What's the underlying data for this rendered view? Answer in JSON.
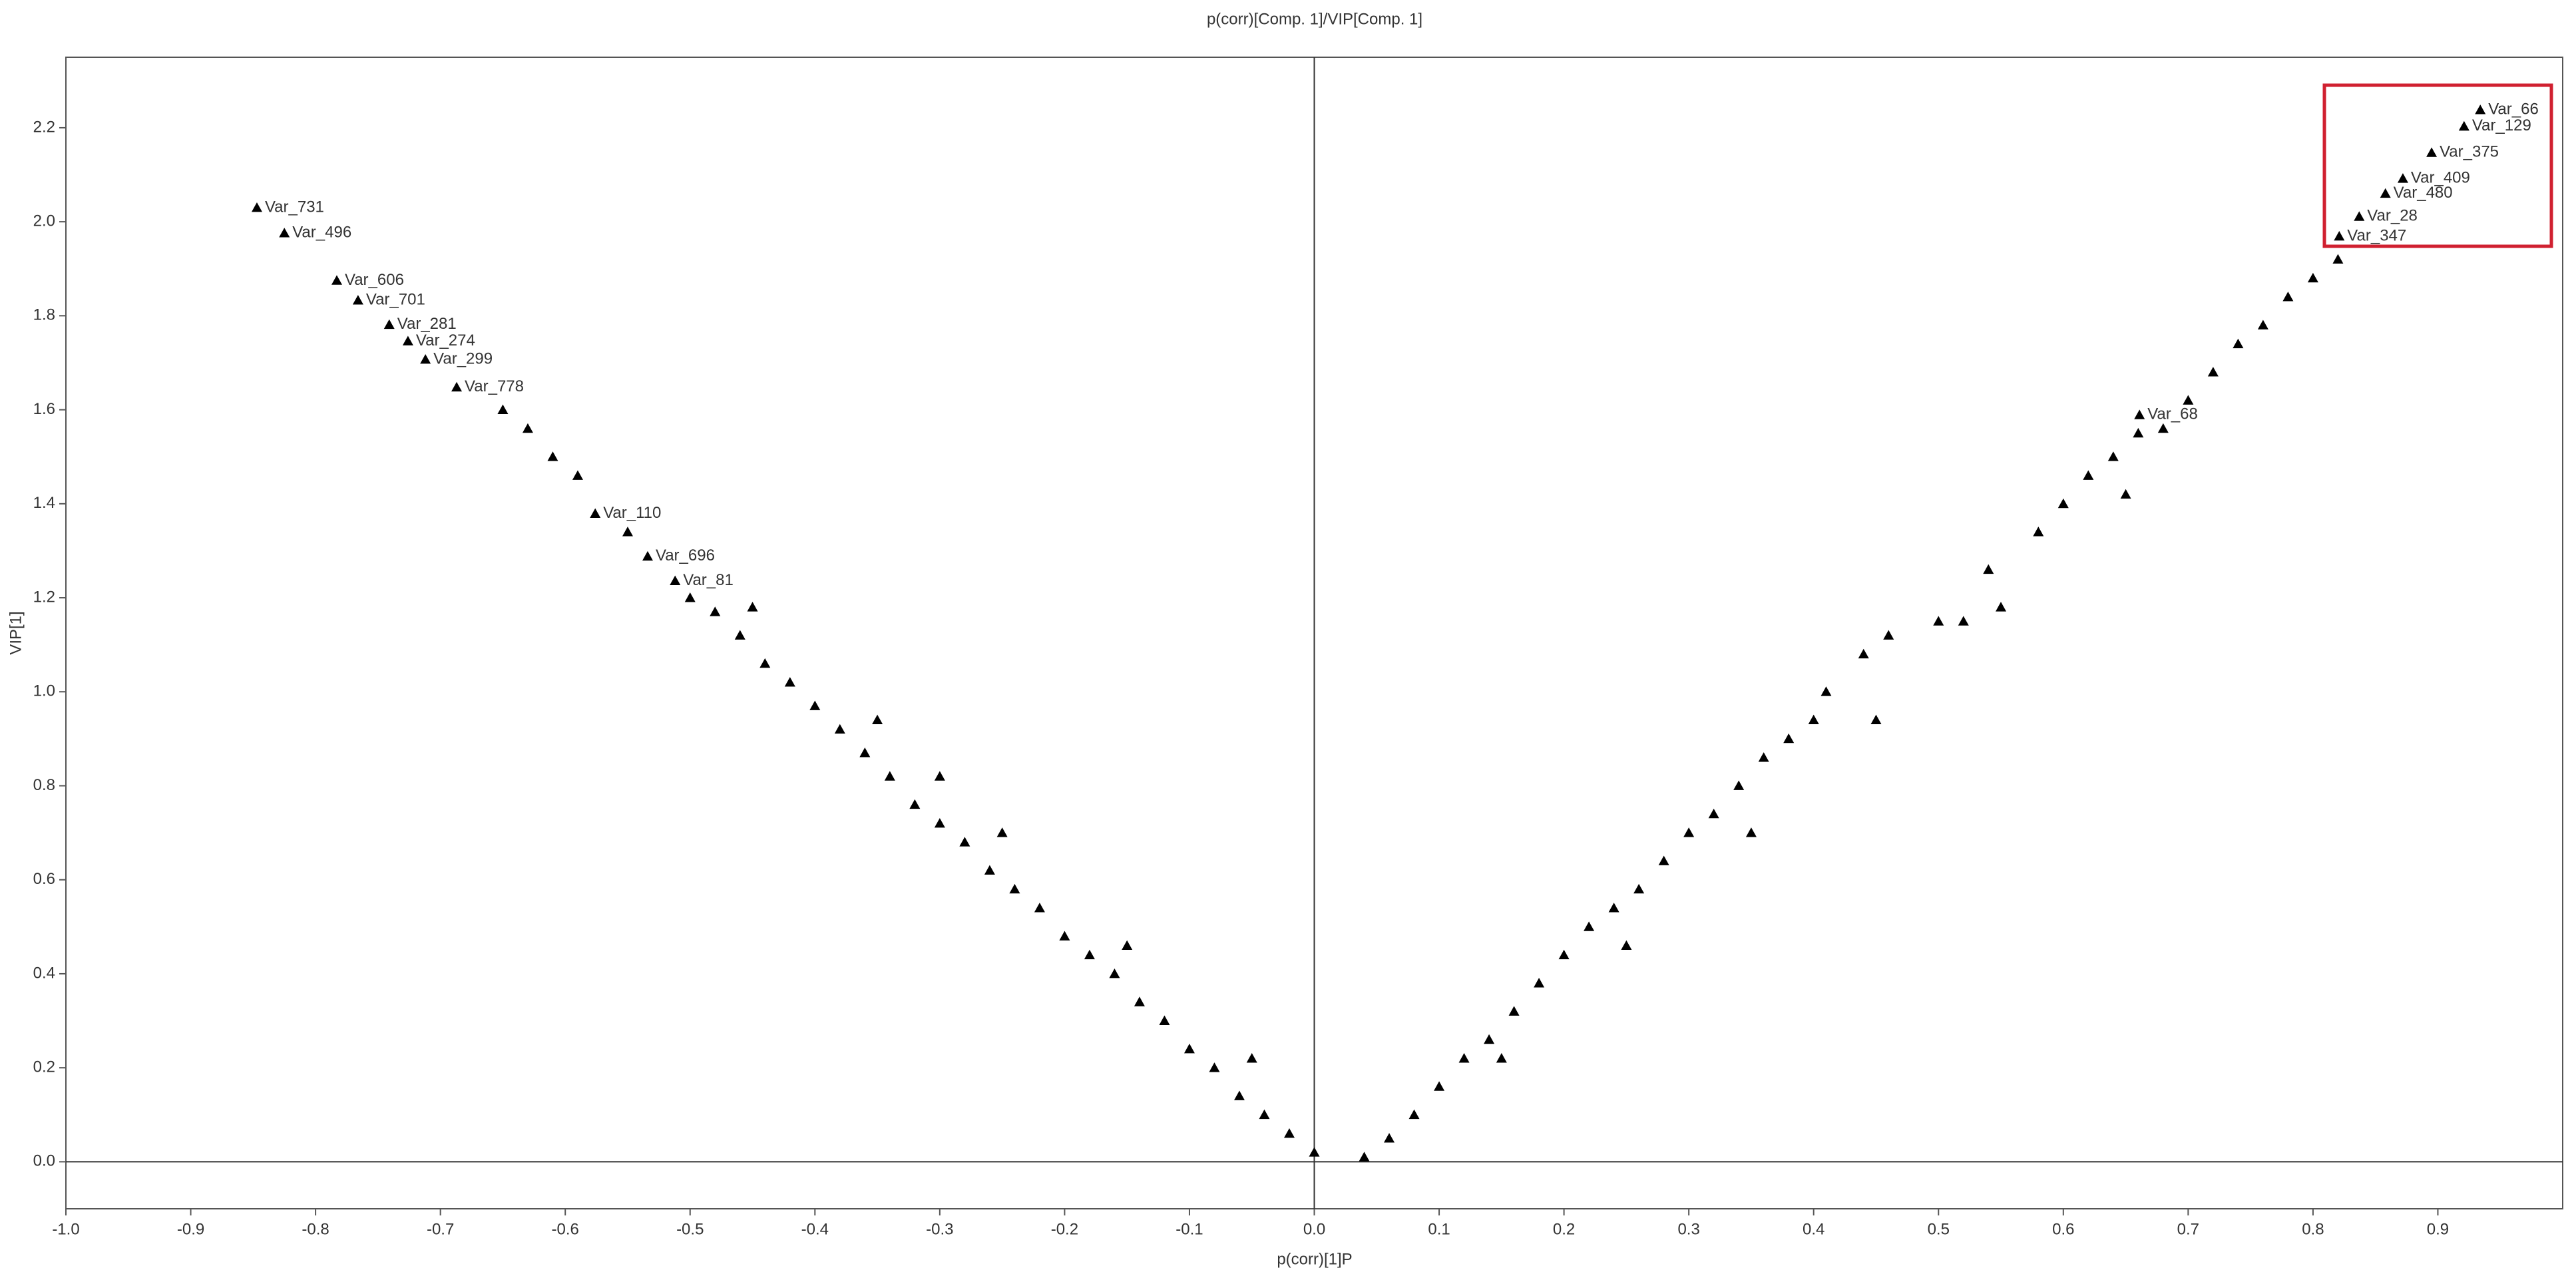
{
  "chart_data": {
    "type": "scatter",
    "title": "p(corr)[Comp. 1]/VIP[Comp. 1]",
    "x_label": "p(corr)[1]P",
    "y_label": "VIP[1]",
    "color": "#000000",
    "xlim": [
      -1,
      1
    ],
    "ylim": [
      -0.1,
      2.35
    ],
    "xticks": [
      {
        "value": -1,
        "label": "-1.0"
      },
      -0.9,
      -0.8,
      -0.7,
      -0.6,
      -0.5,
      -0.4,
      -0.3,
      -0.2,
      -0.1,
      {
        "value": 0,
        "label": "0.0"
      },
      0.1,
      0.2,
      0.3,
      0.4,
      0.5,
      0.6,
      0.7,
      0.8,
      0.9
    ],
    "yticks": [
      {
        "value": 0,
        "label": "0.0"
      },
      0.2,
      0.4,
      0.6,
      0.8,
      {
        "value": 1,
        "label": "1.0"
      },
      1.2,
      1.4,
      1.6,
      1.8,
      {
        "value": 2,
        "label": "2.0"
      },
      2.2
    ],
    "x": [
      -0.847,
      -0.825,
      -0.783,
      -0.766,
      -0.741,
      -0.726,
      -0.712,
      -0.687,
      -0.576,
      -0.534,
      -0.512,
      0.934,
      0.921,
      0.895,
      0.872,
      0.858,
      0.837,
      0.821,
      0.661,
      -0.65,
      -0.63,
      -0.61,
      -0.59,
      -0.55,
      -0.5,
      -0.48,
      -0.46,
      -0.44,
      -0.42,
      -0.4,
      -0.38,
      -0.36,
      -0.34,
      -0.3,
      -0.32,
      -0.3,
      -0.28,
      -0.26,
      -0.24,
      -0.22,
      -0.2,
      -0.18,
      -0.16,
      -0.14,
      -0.12,
      -0.1,
      -0.08,
      -0.06,
      -0.04,
      -0.02,
      0.0,
      -0.45,
      -0.35,
      -0.25,
      -0.15,
      -0.05,
      0.04,
      0.06,
      0.08,
      0.1,
      0.12,
      0.14,
      0.16,
      0.18,
      0.2,
      0.22,
      0.24,
      0.26,
      0.28,
      0.3,
      0.32,
      0.34,
      0.36,
      0.38,
      0.4,
      0.41,
      0.44,
      0.46,
      0.5,
      0.52,
      0.54,
      0.58,
      0.6,
      0.62,
      0.64,
      0.66,
      0.68,
      0.7,
      0.72,
      0.74,
      0.76,
      0.78,
      0.8,
      0.82,
      0.15,
      0.25,
      0.35,
      0.45,
      0.55,
      0.65
    ],
    "values": [
      2.03,
      1.976,
      1.875,
      1.833,
      1.781,
      1.746,
      1.707,
      1.648,
      1.379,
      1.288,
      1.236,
      2.238,
      2.203,
      2.147,
      2.092,
      2.06,
      2.011,
      1.969,
      1.589,
      1.6,
      1.56,
      1.5,
      1.46,
      1.34,
      1.2,
      1.17,
      1.12,
      1.06,
      1.02,
      0.97,
      0.92,
      0.87,
      0.82,
      0.82,
      0.76,
      0.72,
      0.68,
      0.62,
      0.58,
      0.54,
      0.48,
      0.44,
      0.4,
      0.34,
      0.3,
      0.24,
      0.2,
      0.14,
      0.1,
      0.06,
      0.02,
      1.18,
      0.94,
      0.7,
      0.46,
      0.22,
      0.01,
      0.05,
      0.1,
      0.16,
      0.22,
      0.26,
      0.32,
      0.38,
      0.44,
      0.5,
      0.54,
      0.58,
      0.64,
      0.7,
      0.74,
      0.8,
      0.86,
      0.9,
      0.94,
      1.0,
      1.08,
      1.12,
      1.15,
      1.15,
      1.26,
      1.34,
      1.4,
      1.46,
      1.5,
      1.55,
      1.56,
      1.62,
      1.68,
      1.74,
      1.78,
      1.84,
      1.88,
      1.92,
      0.22,
      0.46,
      0.7,
      0.94,
      1.18,
      1.42
    ],
    "point_labels": [
      "Var_731",
      "Var_496",
      "Var_606",
      "Var_701",
      "Var_281",
      "Var_274",
      "Var_299",
      "Var_778",
      "Var_110",
      "Var_696",
      "Var_81",
      "Var_66",
      "Var_129",
      "Var_375",
      "Var_409",
      "Var_480",
      "Var_28",
      "Var_347",
      "Var_68",
      null,
      null,
      null,
      null,
      null,
      null,
      null,
      null,
      null,
      null,
      null,
      null,
      null,
      null,
      null,
      null,
      null,
      null,
      null,
      null,
      null,
      null,
      null,
      null,
      null,
      null,
      null,
      null,
      null,
      null,
      null,
      null,
      null,
      null,
      null,
      null,
      null,
      null,
      null,
      null,
      null,
      null,
      null,
      null,
      null,
      null,
      null,
      null,
      null,
      null,
      null,
      null,
      null,
      null,
      null,
      null,
      null,
      null,
      null,
      null,
      null,
      null,
      null,
      null,
      null,
      null,
      null,
      null,
      null,
      null,
      null,
      null,
      null,
      null,
      null,
      null,
      null,
      null,
      null,
      null,
      null
    ]
  }
}
